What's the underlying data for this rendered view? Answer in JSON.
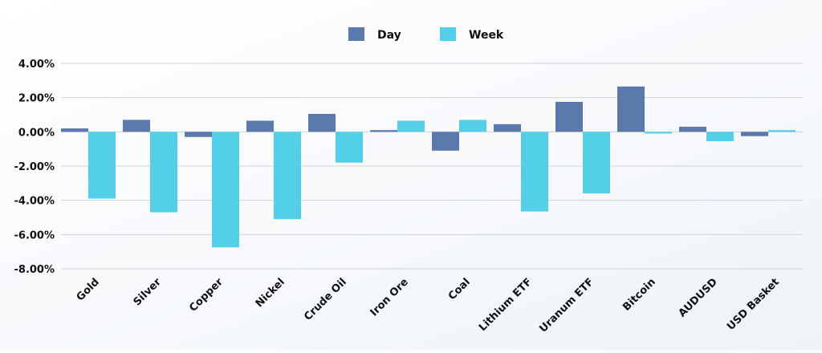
{
  "chart_data": {
    "type": "bar",
    "categories": [
      "Gold",
      "Silver",
      "Copper",
      "Nickel",
      "Crude Oil",
      "Iron Ore",
      "Coal",
      "Lithium ETF",
      "Uranum ETF",
      "Bitcoin",
      "AUDUSD",
      "USD Basket"
    ],
    "series": [
      {
        "name": "Day",
        "color": "#5b79ad",
        "values": [
          0.2,
          0.7,
          -0.3,
          0.65,
          1.05,
          0.1,
          -1.1,
          0.45,
          1.75,
          2.65,
          0.3,
          -0.25
        ]
      },
      {
        "name": "Week",
        "color": "#53d0e8",
        "values": [
          -3.9,
          -4.7,
          -6.75,
          -5.1,
          -1.8,
          0.65,
          0.7,
          -4.65,
          -3.6,
          -0.1,
          -0.55,
          0.1
        ]
      }
    ],
    "ylim": [
      -8,
      4
    ],
    "yticks": [
      "4.00%",
      "2.00%",
      "0.00%",
      "-2.00%",
      "-4.00%",
      "-6.00%",
      "-8.00%"
    ],
    "grid": true,
    "legend_position": "top-center"
  }
}
